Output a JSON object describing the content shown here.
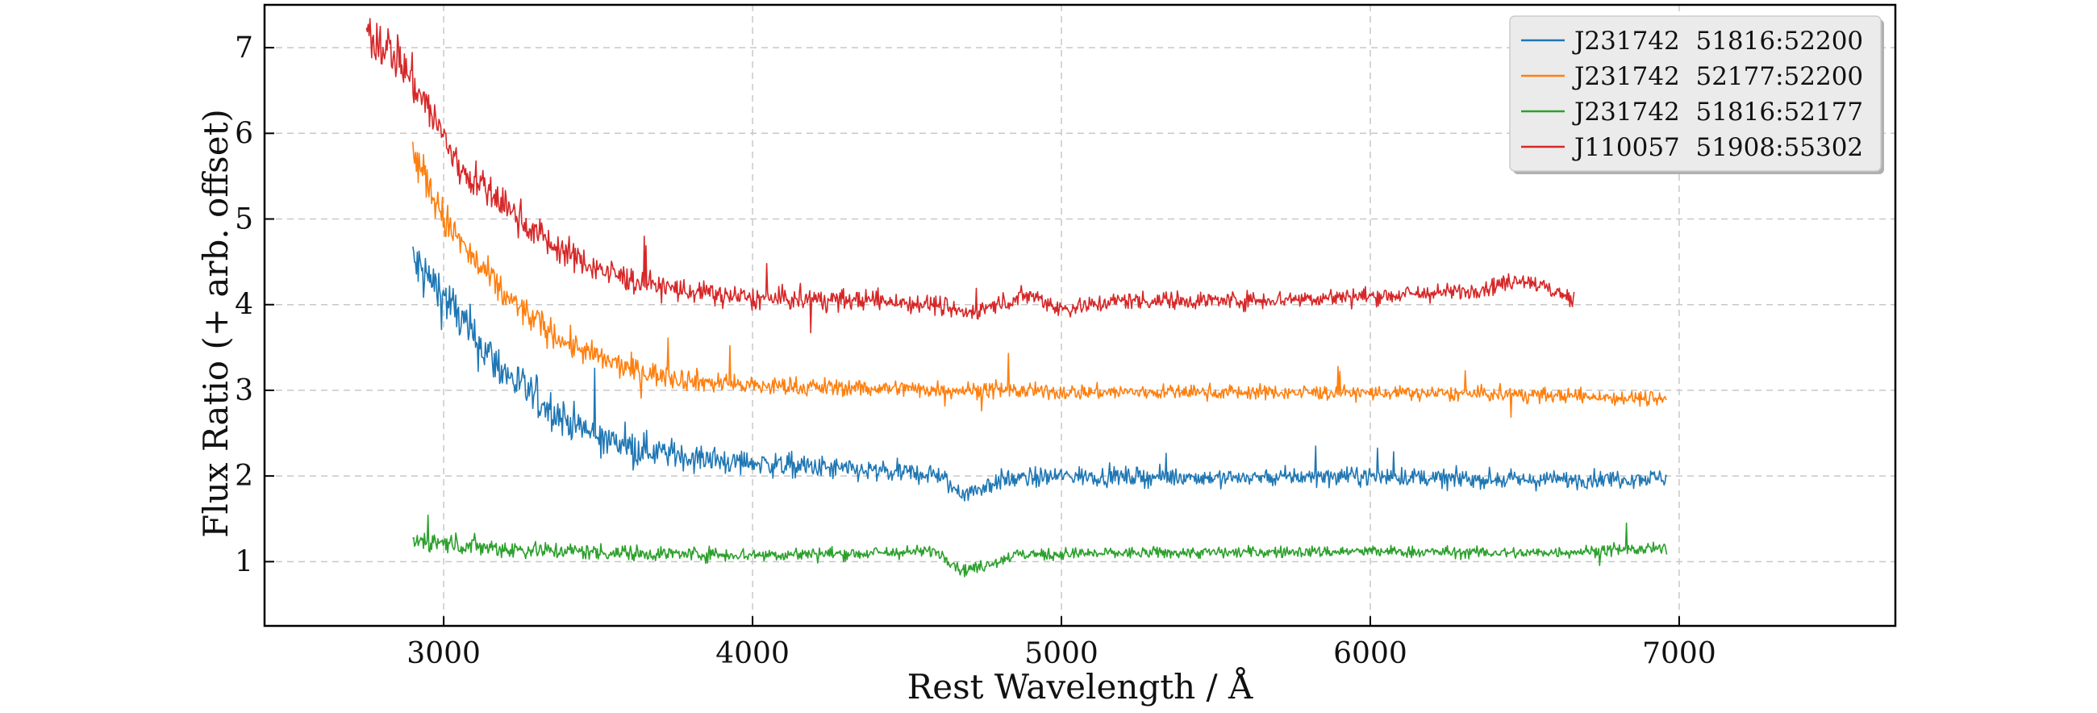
{
  "chart_data": {
    "type": "line",
    "xlabel": "Rest Wavelength / Å",
    "ylabel": "Flux Ratio (+ arb. offset)",
    "xlim": [
      2420,
      7700
    ],
    "ylim": [
      0.25,
      7.5
    ],
    "xticks": [
      3000,
      4000,
      5000,
      6000,
      7000
    ],
    "yticks": [
      1,
      2,
      3,
      4,
      5,
      6,
      7
    ],
    "grid": true,
    "grid_style": "dashed",
    "legend_position": "top-right",
    "colors": {
      "blue": "#1f77b4",
      "orange": "#ff7f0e",
      "green": "#2ca02c",
      "red": "#d62728"
    },
    "series": [
      {
        "name": "J231742  51816:52200",
        "color": "#1f77b4",
        "x_range": [
          2900,
          6960
        ],
        "points": [
          [
            2900,
            4.5
          ],
          [
            3000,
            4.1
          ],
          [
            3100,
            3.6
          ],
          [
            3200,
            3.2
          ],
          [
            3300,
            2.9
          ],
          [
            3400,
            2.65
          ],
          [
            3500,
            2.45
          ],
          [
            3600,
            2.35
          ],
          [
            3700,
            2.28
          ],
          [
            3800,
            2.22
          ],
          [
            3900,
            2.18
          ],
          [
            4000,
            2.15
          ],
          [
            4200,
            2.1
          ],
          [
            4400,
            2.05
          ],
          [
            4600,
            2.02
          ],
          [
            4650,
            1.85
          ],
          [
            4700,
            1.8
          ],
          [
            4800,
            1.95
          ],
          [
            5000,
            2.0
          ],
          [
            5500,
            1.98
          ],
          [
            6000,
            2.0
          ],
          [
            6500,
            1.95
          ],
          [
            6960,
            1.98
          ]
        ],
        "noise": [
          0.3,
          0.12
        ]
      },
      {
        "name": "J231742  52177:52200",
        "color": "#ff7f0e",
        "x_range": [
          2900,
          6960
        ],
        "points": [
          [
            2900,
            5.8
          ],
          [
            3000,
            5.0
          ],
          [
            3100,
            4.5
          ],
          [
            3200,
            4.1
          ],
          [
            3300,
            3.8
          ],
          [
            3400,
            3.55
          ],
          [
            3500,
            3.38
          ],
          [
            3600,
            3.25
          ],
          [
            3700,
            3.18
          ],
          [
            3800,
            3.12
          ],
          [
            3900,
            3.08
          ],
          [
            4000,
            3.05
          ],
          [
            4500,
            3.02
          ],
          [
            5000,
            2.98
          ],
          [
            5500,
            2.98
          ],
          [
            6000,
            2.97
          ],
          [
            6500,
            2.95
          ],
          [
            6960,
            2.9
          ]
        ],
        "noise": [
          0.2,
          0.1
        ]
      },
      {
        "name": "J231742  51816:52177",
        "color": "#2ca02c",
        "x_range": [
          2900,
          6960
        ],
        "points": [
          [
            2900,
            1.25
          ],
          [
            3200,
            1.15
          ],
          [
            3600,
            1.1
          ],
          [
            4000,
            1.08
          ],
          [
            4400,
            1.1
          ],
          [
            4600,
            1.12
          ],
          [
            4680,
            0.9
          ],
          [
            4750,
            0.95
          ],
          [
            4850,
            1.08
          ],
          [
            5200,
            1.1
          ],
          [
            6000,
            1.12
          ],
          [
            6500,
            1.1
          ],
          [
            6960,
            1.15
          ]
        ],
        "noise": [
          0.08,
          0.08
        ]
      },
      {
        "name": "J110057  51908:55302",
        "color": "#d62728",
        "x_range": [
          2750,
          6660
        ],
        "points": [
          [
            2750,
            7.2
          ],
          [
            2850,
            6.9
          ],
          [
            2950,
            6.3
          ],
          [
            3050,
            5.6
          ],
          [
            3150,
            5.3
          ],
          [
            3250,
            5.0
          ],
          [
            3350,
            4.7
          ],
          [
            3450,
            4.5
          ],
          [
            3550,
            4.35
          ],
          [
            3650,
            4.25
          ],
          [
            3800,
            4.15
          ],
          [
            4000,
            4.07
          ],
          [
            4400,
            4.05
          ],
          [
            4600,
            4.0
          ],
          [
            4700,
            3.9
          ],
          [
            4900,
            4.12
          ],
          [
            5000,
            3.95
          ],
          [
            5200,
            4.05
          ],
          [
            5600,
            4.05
          ],
          [
            6000,
            4.1
          ],
          [
            6300,
            4.15
          ],
          [
            6500,
            4.3
          ],
          [
            6660,
            4.05
          ]
        ],
        "noise": [
          0.25,
          0.12
        ]
      }
    ]
  }
}
